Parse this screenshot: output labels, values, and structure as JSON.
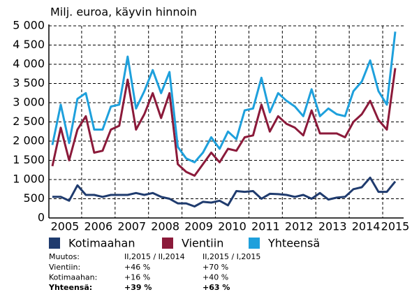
{
  "chart_data": {
    "type": "line",
    "title": "Milj. euroa, käyvin hinnoin",
    "categories": [
      null,
      "2005",
      null,
      null,
      null,
      "2006",
      null,
      null,
      null,
      "2007",
      null,
      null,
      null,
      "2008",
      null,
      null,
      null,
      "2009",
      null,
      null,
      null,
      "2010",
      null,
      null,
      null,
      "2011",
      null,
      null,
      null,
      "2012",
      null,
      null,
      null,
      "2013",
      null,
      null,
      null,
      "2014",
      null,
      null,
      null,
      "2015"
    ],
    "series": [
      {
        "name": "Kotimaahan",
        "color": "#1f3b6e",
        "values": [
          550,
          550,
          450,
          850,
          600,
          600,
          550,
          600,
          600,
          600,
          650,
          600,
          650,
          550,
          500,
          380,
          380,
          300,
          420,
          400,
          450,
          330,
          700,
          680,
          700,
          500,
          630,
          620,
          600,
          550,
          600,
          500,
          650,
          480,
          530,
          550,
          750,
          800,
          1050,
          680,
          680,
          950
        ]
      },
      {
        "name": "Vientiin",
        "color": "#8b1a3a",
        "values": [
          1350,
          2350,
          1500,
          2300,
          2650,
          1700,
          1750,
          2300,
          2400,
          3600,
          2300,
          2700,
          3250,
          2600,
          3250,
          1400,
          1200,
          1100,
          1400,
          1700,
          1450,
          1800,
          1750,
          2100,
          2150,
          2950,
          2250,
          2650,
          2450,
          2350,
          2150,
          2800,
          2200,
          2200,
          2200,
          2100,
          2500,
          2700,
          3050,
          2550,
          2300,
          3900
        ]
      },
      {
        "name": "Yhteensä",
        "color": "#1ea0dc",
        "values": [
          1900,
          2950,
          1950,
          3100,
          3250,
          2300,
          2300,
          2900,
          2950,
          4200,
          2850,
          3300,
          3850,
          3250,
          3800,
          1850,
          1550,
          1450,
          1700,
          2100,
          1800,
          2250,
          2050,
          2800,
          2850,
          3650,
          2750,
          3250,
          3050,
          2900,
          2650,
          3350,
          2650,
          2850,
          2700,
          2650,
          3300,
          3550,
          4100,
          3300,
          2950,
          4850
        ]
      }
    ],
    "ylim": [
      0,
      5000
    ],
    "yticks": [
      0,
      500,
      {
        "value": 1000,
        "label": "1 000"
      },
      {
        "value": 1500,
        "label": "1 500"
      },
      {
        "value": 2000,
        "label": "2 000"
      },
      {
        "value": 2500,
        "label": "2 500"
      },
      {
        "value": 3000,
        "label": "3 000"
      },
      {
        "value": 3500,
        "label": "3 500"
      },
      {
        "value": 4000,
        "label": "4 000"
      },
      {
        "value": 4500,
        "label": "4 500"
      },
      {
        "value": 5000,
        "label": "5 000"
      }
    ],
    "grid": true
  },
  "table": {
    "header": [
      "Muutos:",
      "II,2015 / II,2014",
      "II,2015 / I,2015"
    ],
    "rows": [
      [
        "Vientiin:",
        "+46 %",
        "+70 %"
      ],
      [
        "Kotimaahan:",
        "+16 %",
        "+40 %"
      ],
      [
        "Yhteensä:",
        "+39 %",
        "+63 %"
      ]
    ]
  }
}
